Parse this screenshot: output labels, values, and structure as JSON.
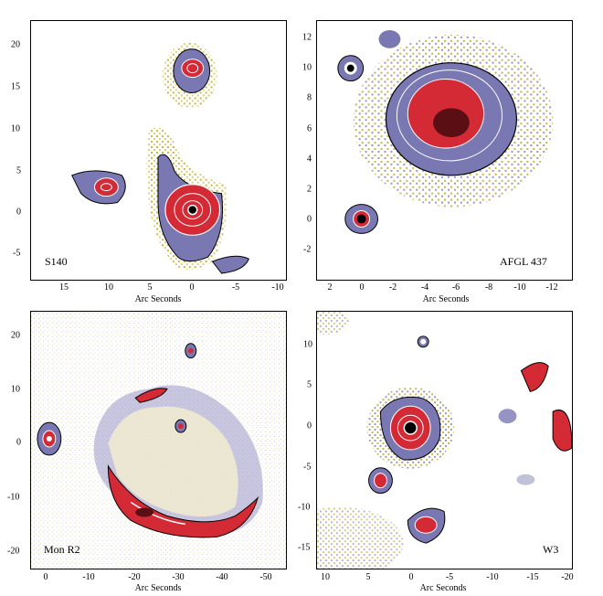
{
  "colors": {
    "bg": "#ffffff",
    "yellow": "#c9b73c",
    "lavender": "#7a78b2",
    "red": "#d42a35",
    "darkred": "#5a0f14",
    "white": "#ffffff",
    "black": "#000000"
  },
  "panels": [
    {
      "id": "s140",
      "label": "S140",
      "xlabel": "Arc Seconds",
      "xticks": [
        "15",
        "10",
        "5",
        "0",
        "-5",
        "-10"
      ],
      "yticks": [
        "20",
        "15",
        "10",
        "5",
        "0",
        "-5"
      ]
    },
    {
      "id": "afgl437",
      "label": "AFGL 437",
      "xlabel": "Arc Seconds",
      "xticks": [
        "2",
        "0",
        "-2",
        "-4",
        "-6",
        "-8",
        "-10",
        "-12"
      ],
      "yticks": [
        "12",
        "10",
        "8",
        "6",
        "4",
        "2",
        "0",
        "-2"
      ]
    },
    {
      "id": "monr2",
      "label": "Mon R2",
      "xlabel": "Arc Seconds",
      "xticks": [
        "0",
        "-10",
        "-20",
        "-30",
        "-40",
        "-50"
      ],
      "yticks": [
        "20",
        "10",
        "0",
        "-10",
        "-20"
      ]
    },
    {
      "id": "w3",
      "label": "W3",
      "xlabel": "Arc Seconds",
      "xticks": [
        "10",
        "5",
        "0",
        "-5",
        "-10",
        "-15",
        "-20"
      ],
      "yticks": [
        "10",
        "5",
        "0",
        "-5",
        "-10",
        "-15"
      ]
    }
  ]
}
